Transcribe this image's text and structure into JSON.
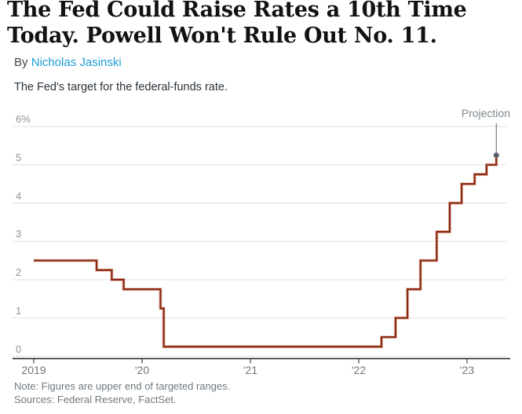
{
  "header": {
    "title_lines": [
      "The Fed Could Raise Rates a 10th Time",
      "Today. Powell Won't Rule Out No. 11."
    ],
    "byline_prefix": "By ",
    "author": "Nicholas Jasinski",
    "subtitle": "The Fed's target for the federal-funds rate."
  },
  "chart_data": {
    "type": "line",
    "subtype": "step",
    "title": "The Fed's target for the federal-funds rate.",
    "unit": "%",
    "ylim": [
      0,
      6
    ],
    "xlim": [
      2019.0,
      2023.45
    ],
    "grid": "horizontal",
    "legend_position": "none",
    "y_ticks": [
      {
        "v": 6,
        "label": "6%"
      },
      {
        "v": 5,
        "label": "5"
      },
      {
        "v": 4,
        "label": "4"
      },
      {
        "v": 3,
        "label": "3"
      },
      {
        "v": 2,
        "label": "2"
      },
      {
        "v": 1,
        "label": "1"
      },
      {
        "v": 0,
        "label": "0"
      }
    ],
    "x_ticks": [
      {
        "t": 2019,
        "label": "2019"
      },
      {
        "t": 2020,
        "label": "'20"
      },
      {
        "t": 2021,
        "label": "'21"
      },
      {
        "t": 2022,
        "label": "'22"
      },
      {
        "t": 2023,
        "label": "'23"
      }
    ],
    "series": [
      {
        "name": "Federal-funds target rate, upper end of range (%)",
        "points": [
          {
            "date": "Jan 2019",
            "t": 2019.0,
            "v": 2.5
          },
          {
            "date": "Aug 2019",
            "t": 2019.58,
            "v": 2.25
          },
          {
            "date": "Sep 2019",
            "t": 2019.72,
            "v": 2.0
          },
          {
            "date": "Oct 2019",
            "t": 2019.83,
            "v": 1.75
          },
          {
            "date": "Mar 2020",
            "t": 2020.17,
            "v": 1.25
          },
          {
            "date": "Mar 2020",
            "t": 2020.2,
            "v": 0.25
          },
          {
            "date": "Mar 2022",
            "t": 2022.21,
            "v": 0.5
          },
          {
            "date": "May 2022",
            "t": 2022.34,
            "v": 1.0
          },
          {
            "date": "Jun 2022",
            "t": 2022.45,
            "v": 1.75
          },
          {
            "date": "Jul 2022",
            "t": 2022.57,
            "v": 2.5
          },
          {
            "date": "Sep 2022",
            "t": 2022.72,
            "v": 3.25
          },
          {
            "date": "Nov 2022",
            "t": 2022.84,
            "v": 4.0
          },
          {
            "date": "Dec 2022",
            "t": 2022.95,
            "v": 4.5
          },
          {
            "date": "Feb 2023",
            "t": 2023.07,
            "v": 4.75
          },
          {
            "date": "Mar 2023",
            "t": 2023.18,
            "v": 5.0
          }
        ]
      }
    ],
    "projection_point": {
      "label": "Projection",
      "date": "May 2023",
      "t": 2023.27,
      "v": 5.25
    }
  },
  "colors": {
    "line": "#8b2a12",
    "line_halo": "#d4937e",
    "grid": "#e0e0e0",
    "axis": "#1a1a1a",
    "projection_line": "#5a6167",
    "projection_dot": "#5a6167",
    "author_link": "#1c9dd9"
  },
  "footer": {
    "note": "Note: Figures are upper end of targeted ranges.",
    "sources": "Sources: Federal Reserve, FactSet."
  }
}
